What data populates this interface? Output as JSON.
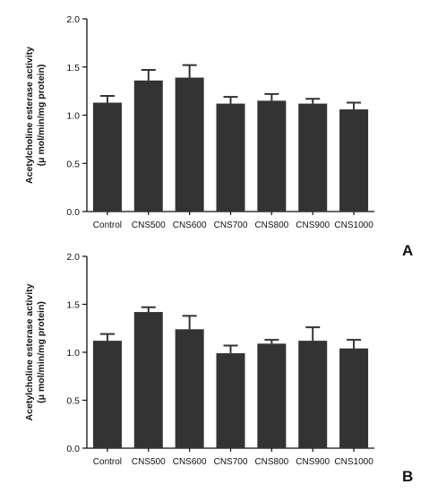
{
  "chart_data": [
    {
      "type": "bar",
      "panel_label": "A",
      "categories": [
        "Control",
        "CNS500",
        "CNS600",
        "CNS700",
        "CNS800",
        "CNS900",
        "CNS1000"
      ],
      "values": [
        1.13,
        1.36,
        1.39,
        1.12,
        1.15,
        1.12,
        1.06
      ],
      "errors": [
        0.07,
        0.11,
        0.13,
        0.07,
        0.07,
        0.05,
        0.07
      ],
      "ylabel_line1": "Acetylcholine esterase activity",
      "ylabel_line2": "(μ mol/min/mg protein)",
      "ylim": [
        0,
        2.0
      ],
      "yticks": [
        "0.0",
        "0.5",
        "1.0",
        "1.5",
        "2.0"
      ],
      "bar_color": "#333333",
      "grid": false
    },
    {
      "type": "bar",
      "panel_label": "B",
      "categories": [
        "Control",
        "CNS500",
        "CNS600",
        "CNS700",
        "CNS800",
        "CNS900",
        "CNS1000"
      ],
      "values": [
        1.12,
        1.42,
        1.24,
        0.99,
        1.09,
        1.12,
        1.04
      ],
      "errors": [
        0.07,
        0.05,
        0.14,
        0.08,
        0.04,
        0.14,
        0.09
      ],
      "ylabel_line1": "Acetylcholine esterase activity",
      "ylabel_line2": "(μ mol/min/mg protein)",
      "ylim": [
        0,
        2.0
      ],
      "yticks": [
        "0.0",
        "0.5",
        "1.0",
        "1.5",
        "2.0"
      ],
      "bar_color": "#333333",
      "grid": false
    }
  ]
}
